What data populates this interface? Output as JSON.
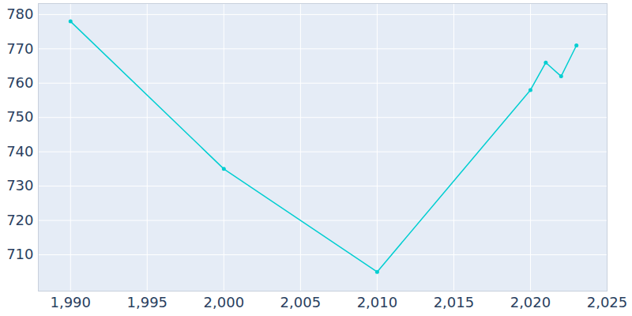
{
  "chart_data": {
    "type": "line",
    "x": [
      1990,
      2000,
      2010,
      2020,
      2021,
      2022,
      2023
    ],
    "values": [
      778,
      735,
      705,
      758,
      766,
      762,
      771
    ],
    "color": "#00ced1",
    "marker": "circle",
    "xlim": [
      1987.9,
      2025
    ],
    "xticks": [
      1990,
      1995,
      2000,
      2005,
      2010,
      2015,
      2020,
      2025
    ],
    "ylim": [
      699.4,
      783.2
    ],
    "yticks": [
      710,
      720,
      730,
      740,
      750,
      760,
      770,
      780
    ],
    "grid": true
  }
}
